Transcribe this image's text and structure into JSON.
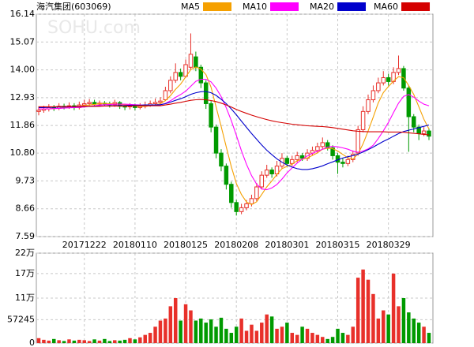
{
  "chart_data": {
    "type": "candlestick",
    "title": "海汽集团(603069)",
    "watermark": "SOHU.com",
    "categories": [
      null,
      null,
      null,
      null,
      null,
      null,
      null,
      null,
      null,
      "20171222",
      null,
      null,
      null,
      null,
      null,
      null,
      null,
      null,
      null,
      "20180110",
      null,
      null,
      null,
      null,
      null,
      null,
      null,
      null,
      null,
      "20180125",
      null,
      null,
      null,
      null,
      null,
      null,
      null,
      null,
      null,
      "20180208",
      null,
      null,
      null,
      null,
      null,
      null,
      null,
      null,
      null,
      "20180301",
      null,
      null,
      null,
      null,
      null,
      null,
      null,
      null,
      null,
      "20180315",
      null,
      null,
      null,
      null,
      null,
      null,
      null,
      null,
      null,
      "20180329",
      null,
      null,
      null,
      null,
      null,
      null,
      null,
      null
    ],
    "open": [
      12.4,
      12.45,
      12.5,
      12.55,
      12.52,
      12.6,
      12.58,
      12.62,
      12.55,
      12.65,
      12.7,
      12.75,
      12.68,
      12.72,
      12.7,
      12.66,
      12.74,
      12.6,
      12.58,
      12.62,
      12.55,
      12.6,
      12.65,
      12.7,
      12.75,
      12.85,
      13.2,
      13.6,
      13.9,
      13.75,
      14.1,
      14.5,
      14.1,
      13.5,
      12.7,
      11.8,
      10.8,
      10.3,
      9.6,
      8.9,
      8.55,
      8.7,
      8.85,
      9.05,
      9.5,
      9.95,
      10.15,
      10.0,
      10.3,
      10.6,
      10.4,
      10.55,
      10.7,
      10.6,
      10.8,
      10.9,
      11.05,
      11.2,
      11.0,
      10.7,
      10.45,
      10.4,
      10.55,
      10.8,
      11.7,
      12.4,
      12.85,
      13.2,
      13.5,
      13.7,
      13.55,
      13.9,
      14.05,
      13.3,
      12.2,
      11.8,
      11.55,
      11.65
    ],
    "high": [
      12.6,
      12.62,
      12.68,
      12.65,
      12.72,
      12.7,
      12.75,
      12.72,
      12.78,
      12.85,
      12.88,
      12.85,
      12.82,
      12.8,
      12.78,
      12.85,
      12.8,
      12.7,
      12.72,
      12.7,
      12.72,
      12.78,
      12.82,
      12.9,
      12.95,
      13.35,
      13.75,
      14.25,
      14.05,
      14.4,
      15.4,
      14.7,
      14.2,
      13.6,
      12.8,
      11.9,
      10.95,
      10.4,
      9.7,
      9.0,
      8.85,
      9.0,
      9.2,
      9.65,
      10.1,
      10.35,
      10.25,
      10.5,
      10.8,
      10.7,
      10.7,
      10.85,
      10.8,
      10.95,
      11.05,
      11.2,
      11.4,
      11.3,
      11.1,
      10.8,
      10.6,
      10.7,
      10.9,
      11.85,
      12.6,
      13.05,
      13.4,
      13.7,
      13.95,
      13.85,
      14.1,
      14.55,
      14.15,
      13.4,
      12.3,
      11.9,
      11.8,
      11.75
    ],
    "low": [
      12.25,
      12.35,
      12.4,
      12.42,
      12.45,
      12.48,
      12.5,
      12.45,
      12.48,
      12.55,
      12.6,
      12.58,
      12.6,
      12.6,
      12.55,
      12.58,
      12.5,
      12.45,
      12.48,
      12.45,
      12.48,
      12.52,
      12.58,
      12.62,
      12.65,
      12.8,
      13.1,
      13.5,
      13.6,
      13.7,
      14.0,
      13.95,
      13.3,
      12.5,
      11.6,
      10.6,
      10.1,
      9.4,
      8.7,
      8.4,
      8.45,
      8.6,
      8.75,
      8.95,
      9.4,
      9.85,
      9.85,
      9.9,
      10.2,
      10.3,
      10.3,
      10.45,
      10.5,
      10.5,
      10.7,
      10.8,
      10.95,
      10.9,
      10.55,
      10.0,
      10.25,
      10.3,
      10.45,
      10.7,
      11.6,
      12.3,
      12.75,
      13.1,
      13.4,
      13.4,
      13.45,
      13.8,
      13.2,
      10.85,
      11.6,
      11.3,
      11.45,
      11.3
    ],
    "close": [
      12.45,
      12.5,
      12.55,
      12.52,
      12.6,
      12.58,
      12.62,
      12.55,
      12.65,
      12.7,
      12.75,
      12.68,
      12.72,
      12.7,
      12.66,
      12.74,
      12.6,
      12.58,
      12.62,
      12.55,
      12.6,
      12.65,
      12.7,
      12.75,
      12.8,
      13.2,
      13.6,
      13.9,
      13.75,
      14.2,
      14.6,
      14.1,
      13.5,
      12.7,
      11.8,
      10.8,
      10.3,
      9.6,
      8.9,
      8.55,
      8.7,
      8.85,
      9.05,
      9.5,
      9.95,
      10.15,
      10.0,
      10.3,
      10.6,
      10.4,
      10.55,
      10.7,
      10.6,
      10.8,
      10.9,
      11.05,
      11.2,
      11.0,
      10.7,
      10.45,
      10.4,
      10.55,
      10.75,
      11.7,
      12.4,
      12.85,
      13.2,
      13.5,
      13.7,
      13.55,
      13.9,
      14.05,
      13.3,
      12.2,
      11.8,
      11.55,
      11.65,
      11.45
    ],
    "volume": [
      12000,
      8000,
      6000,
      10000,
      7000,
      5000,
      9000,
      6000,
      8000,
      7000,
      5000,
      9000,
      6000,
      10000,
      5000,
      7000,
      6000,
      8000,
      12000,
      9000,
      14000,
      20000,
      25000,
      40000,
      55000,
      60000,
      90000,
      110000,
      55000,
      95000,
      80000,
      55000,
      60000,
      50000,
      58000,
      40000,
      62000,
      35000,
      25000,
      40000,
      60000,
      30000,
      45000,
      30000,
      50000,
      70000,
      65000,
      35000,
      40000,
      50000,
      25000,
      20000,
      40000,
      35000,
      25000,
      20000,
      15000,
      10000,
      15000,
      35000,
      25000,
      20000,
      40000,
      160000,
      180000,
      155000,
      120000,
      60000,
      80000,
      70000,
      170000,
      90000,
      110000,
      75000,
      60000,
      50000,
      40000,
      25000
    ],
    "up_color": "#e8302a",
    "down_color": "#009a00",
    "series": [
      {
        "name": "MA5",
        "color": "#f5a000",
        "values": [
          12.5,
          12.5,
          12.5,
          12.51,
          12.52,
          12.55,
          12.57,
          12.57,
          12.6,
          12.63,
          12.65,
          12.67,
          12.7,
          12.71,
          12.7,
          12.7,
          12.68,
          12.66,
          12.64,
          12.62,
          12.59,
          12.6,
          12.62,
          12.65,
          12.7,
          12.82,
          13.01,
          13.25,
          13.45,
          13.73,
          14.01,
          14.11,
          14.03,
          13.82,
          13.34,
          12.58,
          11.82,
          11.04,
          10.28,
          9.63,
          9.21,
          8.92,
          8.82,
          8.93,
          9.21,
          9.5,
          9.73,
          9.98,
          10.2,
          10.29,
          10.37,
          10.51,
          10.56,
          10.61,
          10.71,
          10.81,
          10.95,
          10.99,
          10.97,
          10.88,
          10.75,
          10.62,
          10.57,
          10.77,
          11.16,
          11.65,
          12.18,
          12.73,
          13.13,
          13.36,
          13.57,
          13.74,
          13.7,
          13.4,
          13.05,
          12.58,
          12.1,
          11.73
        ]
      },
      {
        "name": "MA10",
        "color": "#ff00ff",
        "values": [
          12.5,
          12.5,
          12.5,
          12.51,
          12.52,
          12.53,
          12.54,
          12.55,
          12.56,
          12.57,
          12.6,
          12.62,
          12.64,
          12.66,
          12.67,
          12.68,
          12.68,
          12.68,
          12.67,
          12.66,
          12.65,
          12.64,
          12.64,
          12.65,
          12.66,
          12.71,
          12.81,
          12.94,
          13.05,
          13.18,
          13.37,
          13.56,
          13.64,
          13.64,
          13.54,
          13.3,
          12.97,
          12.54,
          12.05,
          11.48,
          10.89,
          10.37,
          9.93,
          9.6,
          9.42,
          9.39,
          9.46,
          9.59,
          9.8,
          10.04,
          10.23,
          10.42,
          10.57,
          10.69,
          10.79,
          10.87,
          10.95,
          11.03,
          11.06,
          11.04,
          11.0,
          10.95,
          10.87,
          10.83,
          10.88,
          10.96,
          11.1,
          11.36,
          11.66,
          11.98,
          12.36,
          12.72,
          12.98,
          13.05,
          12.95,
          12.8,
          12.68,
          12.62
        ]
      },
      {
        "name": "MA20",
        "color": "#0000cc",
        "values": [
          12.55,
          12.55,
          12.56,
          12.56,
          12.57,
          12.57,
          12.58,
          12.58,
          12.59,
          12.59,
          12.6,
          12.6,
          12.61,
          12.61,
          12.62,
          12.62,
          12.63,
          12.63,
          12.64,
          12.64,
          12.64,
          12.65,
          12.65,
          12.65,
          12.66,
          12.7,
          12.76,
          12.83,
          12.89,
          12.97,
          13.06,
          13.12,
          13.16,
          13.17,
          13.12,
          13.02,
          12.87,
          12.7,
          12.5,
          12.27,
          12.03,
          11.79,
          11.55,
          11.33,
          11.11,
          10.91,
          10.74,
          10.58,
          10.45,
          10.34,
          10.26,
          10.2,
          10.17,
          10.17,
          10.2,
          10.25,
          10.31,
          10.39,
          10.46,
          10.54,
          10.61,
          10.66,
          10.7,
          10.76,
          10.84,
          10.93,
          11.03,
          11.14,
          11.25,
          11.34,
          11.45,
          11.55,
          11.63,
          11.68,
          11.73,
          11.78,
          11.83,
          11.88
        ]
      },
      {
        "name": "MA60",
        "color": "#d40000",
        "values": [
          12.58,
          12.58,
          12.58,
          12.58,
          12.59,
          12.59,
          12.59,
          12.59,
          12.6,
          12.6,
          12.6,
          12.6,
          12.6,
          12.61,
          12.61,
          12.61,
          12.61,
          12.61,
          12.61,
          12.62,
          12.62,
          12.62,
          12.62,
          12.62,
          12.62,
          12.65,
          12.68,
          12.72,
          12.75,
          12.79,
          12.83,
          12.85,
          12.86,
          12.85,
          12.82,
          12.78,
          12.72,
          12.65,
          12.57,
          12.48,
          12.4,
          12.33,
          12.26,
          12.2,
          12.14,
          12.09,
          12.04,
          12.0,
          11.97,
          11.94,
          11.91,
          11.89,
          11.87,
          11.85,
          11.84,
          11.83,
          11.82,
          11.8,
          11.78,
          11.75,
          11.72,
          11.69,
          11.66,
          11.64,
          11.63,
          11.62,
          11.62,
          11.62,
          11.62,
          11.61,
          11.61,
          11.61,
          11.6,
          11.58,
          11.56,
          11.54,
          11.52,
          11.5
        ]
      }
    ],
    "ylim": [
      7.59,
      16.14
    ],
    "yticks": [
      7.59,
      8.66,
      9.73,
      {
        "value": 10.8,
        "label": "10.80"
      },
      11.86,
      12.93,
      {
        "value": 14,
        "label": "14.00"
      },
      15.07,
      16.14
    ],
    "volume_ylim": [
      0,
      220000
    ],
    "volume_yticks": [
      0,
      57245,
      {
        "value": 110000,
        "label": "11万"
      },
      {
        "value": 170000,
        "label": "17万"
      },
      {
        "value": 220000,
        "label": "22万"
      }
    ],
    "grid": true
  }
}
